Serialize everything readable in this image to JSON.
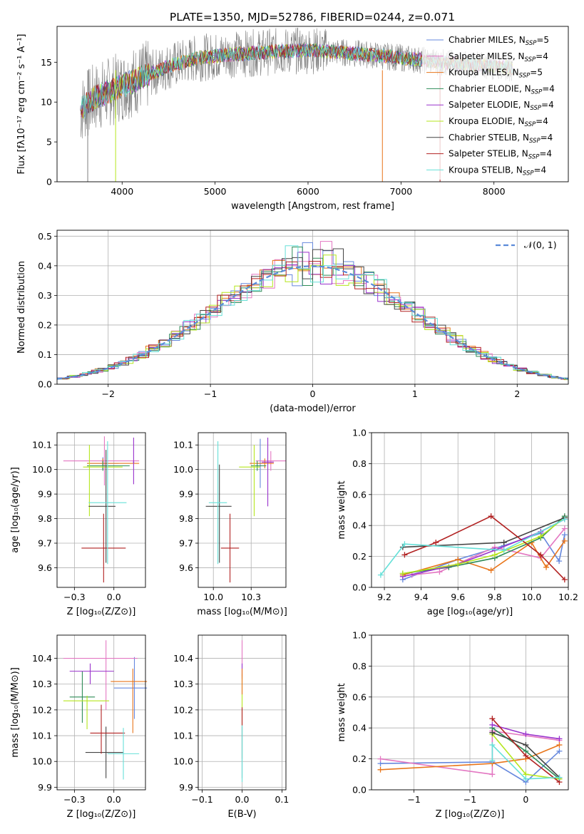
{
  "figure_title": "PLATE=1350, MJD=52786, FIBERID=0244, z=0.071",
  "models": [
    {
      "key": "chab_miles",
      "imf": "Chabrier",
      "lib": "MILES",
      "nssp": "5",
      "color": "#6688dd"
    },
    {
      "key": "salp_miles",
      "imf": "Salpeter",
      "lib": "MILES",
      "nssp": "4",
      "color": "#e377c2"
    },
    {
      "key": "krou_miles",
      "imf": "Kroupa",
      "lib": "MILES",
      "nssp": "5",
      "color": "#e8751a"
    },
    {
      "key": "chab_elodie",
      "imf": "Chabrier",
      "lib": "ELODIE",
      "nssp": "4",
      "color": "#2e8b57"
    },
    {
      "key": "salp_elodie",
      "imf": "Salpeter",
      "lib": "ELODIE",
      "nssp": "4",
      "color": "#9932cc"
    },
    {
      "key": "krou_elodie",
      "imf": "Kroupa",
      "lib": "ELODIE",
      "nssp": "4",
      "color": "#b5e61d"
    },
    {
      "key": "chab_stelib",
      "imf": "Chabrier",
      "lib": "STELIB",
      "nssp": "4",
      "color": "#444444"
    },
    {
      "key": "salp_stelib",
      "imf": "Salpeter",
      "lib": "STELIB",
      "nssp": "4",
      "color": "#b22222"
    },
    {
      "key": "krou_stelib",
      "imf": "Kroupa",
      "lib": "STELIB",
      "nssp": "4",
      "color": "#66e0d8"
    }
  ],
  "chart_data": [
    {
      "id": "spectrum",
      "type": "line",
      "xlabel": "wavelength [Angstrom, rest frame]",
      "ylabel": "Flux [fλ10⁻¹⁷ erg cm⁻² s⁻¹ A⁻¹]",
      "xlim": [
        3300,
        8800
      ],
      "ylim": [
        0,
        19.5
      ],
      "xticks": [
        4000,
        5000,
        6000,
        7000,
        8000
      ],
      "yticks": [
        0,
        5,
        10,
        15
      ],
      "legend_position": "right",
      "continuum": [
        [
          3550,
          9
        ],
        [
          3700,
          10.5
        ],
        [
          3900,
          11.5
        ],
        [
          4100,
          12.5
        ],
        [
          4300,
          13.5
        ],
        [
          4500,
          14.5
        ],
        [
          4800,
          15.5
        ],
        [
          5200,
          16
        ],
        [
          5600,
          16.3
        ],
        [
          6000,
          16.5
        ],
        [
          6400,
          16.2
        ],
        [
          6800,
          15.8
        ],
        [
          7200,
          15.3
        ],
        [
          7600,
          14.8
        ],
        [
          8000,
          14.5
        ],
        [
          8200,
          14.3
        ]
      ],
      "notes": "noisy observed spectrum (grey) with model fits overlaid"
    },
    {
      "id": "residuals",
      "type": "line",
      "xlabel": "(data-model)/error",
      "ylabel": "Normed distribution",
      "xlim": [
        -2.5,
        2.5
      ],
      "ylim": [
        0,
        0.52
      ],
      "xticks": [
        -2,
        -1,
        0,
        1,
        2
      ],
      "yticks": [
        0,
        0.1,
        0.2,
        0.3,
        0.4,
        0.5
      ],
      "legend": "𝒩(0, 1)",
      "legend_position": "top-right",
      "series_note": "step histograms of each model's residuals with dashed Gaussian N(0,1)"
    },
    {
      "id": "age_vs_Z",
      "type": "scatter",
      "xlabel": "Z [log₁₀(Z/Z⊙)]",
      "ylabel": "age  [log₁₀(age/yr)]",
      "xlim": [
        -0.36,
        0.2
      ],
      "ylim": [
        9.52,
        10.15
      ],
      "xticks": [
        -0.25,
        0.0
      ],
      "yticks": [
        9.6,
        9.7,
        9.8,
        9.9,
        10.0,
        10.1
      ],
      "points": [
        {
          "model": "chab_miles",
          "x": -0.07,
          "xerr": [
            0.1,
            0.1
          ],
          "y": 10.025,
          "yerr": [
            0.025,
            0.025
          ]
        },
        {
          "model": "salp_miles",
          "x": -0.06,
          "xerr": [
            0.26,
            0.22
          ],
          "y": 10.035,
          "yerr": [
            0.1,
            0.1
          ]
        },
        {
          "model": "krou_miles",
          "x": -0.07,
          "xerr": [
            0.1,
            0.23
          ],
          "y": 10.025,
          "yerr": [
            0.02,
            0.02
          ]
        },
        {
          "model": "chab_elodie",
          "x": -0.07,
          "xerr": [
            0.1,
            0.17
          ],
          "y": 10.015,
          "yerr": [
            0.02,
            0.02
          ]
        },
        {
          "model": "salp_elodie",
          "x": 0.125,
          "xerr": [
            0.004,
            0.004
          ],
          "y": 10.03,
          "yerr": [
            0.09,
            0.1
          ]
        },
        {
          "model": "krou_elodie",
          "x": -0.155,
          "xerr": [
            0.04,
            0.21
          ],
          "y": 10.01,
          "yerr": [
            0.2,
            0.09
          ]
        },
        {
          "model": "chab_stelib",
          "x": -0.05,
          "xerr": [
            0.11,
            0.06
          ],
          "y": 9.85,
          "yerr": [
            0.23,
            0.23
          ]
        },
        {
          "model": "salp_stelib",
          "x": -0.065,
          "xerr": [
            0.14,
            0.14
          ],
          "y": 9.68,
          "yerr": [
            0.14,
            0.14
          ]
        },
        {
          "model": "krou_stelib",
          "x": -0.04,
          "xerr": [
            0.12,
            0.12
          ],
          "y": 9.865,
          "yerr": [
            0.25,
            0.25
          ]
        }
      ]
    },
    {
      "id": "age_vs_mass",
      "type": "scatter",
      "xlabel": "mass [log₁₀(M/M⊙)]",
      "ylabel": "",
      "xlim": [
        9.9,
        10.48
      ],
      "ylim": [
        9.52,
        10.15
      ],
      "xticks": [
        10.0,
        10.25
      ],
      "yticks": [
        9.6,
        9.7,
        9.8,
        9.9,
        10.0,
        10.1
      ],
      "points": [
        {
          "model": "chab_miles",
          "x": 10.31,
          "xerr": [
            0.02,
            0.02
          ],
          "y": 10.025,
          "yerr": [
            0.1,
            0.1
          ]
        },
        {
          "model": "salp_miles",
          "x": 10.38,
          "xerr": [
            0.1,
            0.1
          ],
          "y": 10.035,
          "yerr": [
            0.04,
            0.04
          ]
        },
        {
          "model": "krou_miles",
          "x": 10.34,
          "xerr": [
            0.1,
            0.06
          ],
          "y": 10.025,
          "yerr": [
            0.02,
            0.02
          ]
        },
        {
          "model": "chab_elodie",
          "x": 10.29,
          "xerr": [
            0.04,
            0.06
          ],
          "y": 10.015,
          "yerr": [
            0.02,
            0.02
          ]
        },
        {
          "model": "salp_elodie",
          "x": 10.36,
          "xerr": [
            0.04,
            0.04
          ],
          "y": 10.03,
          "yerr": [
            0.18,
            0.1
          ]
        },
        {
          "model": "krou_elodie",
          "x": 10.27,
          "xerr": [
            0.1,
            0.04
          ],
          "y": 10.01,
          "yerr": [
            0.2,
            0.09
          ]
        },
        {
          "model": "chab_stelib",
          "x": 10.04,
          "xerr": [
            0.09,
            0.08
          ],
          "y": 9.85,
          "yerr": [
            0.23,
            0.17
          ]
        },
        {
          "model": "salp_stelib",
          "x": 10.11,
          "xerr": [
            0.06,
            0.06
          ],
          "y": 9.68,
          "yerr": [
            0.14,
            0.14
          ]
        },
        {
          "model": "krou_stelib",
          "x": 10.03,
          "xerr": [
            0.06,
            0.06
          ],
          "y": 9.865,
          "yerr": [
            0.25,
            0.25
          ]
        }
      ]
    },
    {
      "id": "weight_vs_age",
      "type": "line",
      "xlabel": "age  [log₁₀(age/yr)]",
      "ylabel": "mass weight",
      "xlim": [
        9.13,
        10.2
      ],
      "ylim": [
        0,
        1
      ],
      "xticks": [
        9.2,
        9.4,
        9.6,
        9.8,
        10.0,
        10.2
      ],
      "yticks": [
        0,
        0.2,
        0.4,
        0.6,
        0.8,
        1.0
      ],
      "series": [
        {
          "model": "chab_miles",
          "x": [
            9.3,
            9.6,
            9.85,
            10.05,
            10.15,
            10.18
          ],
          "y": [
            0.05,
            0.18,
            0.27,
            0.35,
            0.17,
            0.34
          ]
        },
        {
          "model": "salp_miles",
          "x": [
            9.35,
            9.5,
            9.8,
            10.05,
            10.18
          ],
          "y": [
            0.08,
            0.1,
            0.26,
            0.19,
            0.38
          ]
        },
        {
          "model": "krou_miles",
          "x": [
            9.3,
            9.6,
            9.78,
            10.0,
            10.08,
            10.18
          ],
          "y": [
            0.08,
            0.18,
            0.11,
            0.29,
            0.13,
            0.3
          ]
        },
        {
          "model": "chab_elodie",
          "x": [
            9.3,
            9.55,
            9.8,
            10.05,
            10.18
          ],
          "y": [
            0.09,
            0.13,
            0.19,
            0.32,
            0.46
          ]
        },
        {
          "model": "salp_elodie",
          "x": [
            9.3,
            9.6,
            9.8,
            10.05,
            10.18
          ],
          "y": [
            0.07,
            0.15,
            0.24,
            0.36,
            0.44
          ]
        },
        {
          "model": "krou_elodie",
          "x": [
            9.3,
            9.6,
            9.8,
            10.05,
            10.18
          ],
          "y": [
            0.09,
            0.15,
            0.21,
            0.33,
            0.45
          ]
        },
        {
          "model": "chab_stelib",
          "x": [
            9.3,
            9.85,
            10.18
          ],
          "y": [
            0.26,
            0.29,
            0.45
          ]
        },
        {
          "model": "salp_stelib",
          "x": [
            9.31,
            9.48,
            9.78,
            10.05,
            10.18
          ],
          "y": [
            0.21,
            0.29,
            0.46,
            0.21,
            0.05
          ]
        },
        {
          "model": "krou_stelib",
          "x": [
            9.18,
            9.31,
            9.85,
            10.18
          ],
          "y": [
            0.08,
            0.28,
            0.24,
            0.44
          ]
        }
      ]
    },
    {
      "id": "mass_vs_Z",
      "type": "scatter",
      "xlabel": "Z [log₁₀(Z/Z⊙)]",
      "ylabel": "mass [log₁₀(M/M⊙)]",
      "xlim": [
        -0.36,
        0.2
      ],
      "ylim": [
        9.89,
        10.49
      ],
      "xticks": [
        -0.25,
        0.0
      ],
      "yticks": [
        9.9,
        10.0,
        10.1,
        10.2,
        10.3,
        10.4
      ],
      "points": [
        {
          "model": "chab_miles",
          "x": 0.13,
          "xerr": [
            0.13,
            0.08
          ],
          "y": 10.285,
          "yerr": [
            0.12,
            0.12
          ]
        },
        {
          "model": "salp_miles",
          "x": -0.05,
          "xerr": [
            0.27,
            0.2
          ],
          "y": 10.4,
          "yerr": [
            0.2,
            0.07
          ]
        },
        {
          "model": "krou_miles",
          "x": 0.12,
          "xerr": [
            0.14,
            0.09
          ],
          "y": 10.31,
          "yerr": [
            0.2,
            0.05
          ]
        },
        {
          "model": "chab_elodie",
          "x": -0.2,
          "xerr": [
            0.08,
            0.08
          ],
          "y": 10.25,
          "yerr": [
            0.1,
            0.1
          ]
        },
        {
          "model": "salp_elodie",
          "x": -0.15,
          "xerr": [
            0.13,
            0.15
          ],
          "y": 10.35,
          "yerr": [
            0.05,
            0.03
          ]
        },
        {
          "model": "krou_elodie",
          "x": -0.17,
          "xerr": [
            0.15,
            0.14
          ],
          "y": 10.235,
          "yerr": [
            0.11,
            0.02
          ]
        },
        {
          "model": "chab_stelib",
          "x": -0.05,
          "xerr": [
            0.13,
            0.11
          ],
          "y": 10.035,
          "yerr": [
            0.1,
            0.1
          ]
        },
        {
          "model": "salp_stelib",
          "x": -0.08,
          "xerr": [
            0.07,
            0.15
          ],
          "y": 10.11,
          "yerr": [
            0.08,
            0.11
          ]
        },
        {
          "model": "krou_stelib",
          "x": 0.06,
          "xerr": [
            0.1,
            0.1
          ],
          "y": 10.03,
          "yerr": [
            0.1,
            0.1
          ]
        }
      ]
    },
    {
      "id": "mass_vs_ebv",
      "type": "scatter",
      "xlabel": "E(B-V)",
      "ylabel": "",
      "xlim": [
        -0.055,
        0.055
      ],
      "ylim": [
        9.89,
        10.49
      ],
      "xticks": [
        -0.05,
        0.0,
        0.05
      ],
      "yticks": [
        9.9,
        10.0,
        10.1,
        10.2,
        10.3,
        10.4
      ],
      "points": [
        {
          "model": "salp_miles",
          "x": 0,
          "y": 10.4,
          "yerr": [
            0.07,
            0.07
          ]
        },
        {
          "model": "salp_elodie",
          "x": 0,
          "y": 10.35,
          "yerr": [
            0.03,
            0.03
          ]
        },
        {
          "model": "krou_elodie",
          "x": 0,
          "y": 10.24,
          "yerr": [
            0.1,
            0.1
          ]
        },
        {
          "model": "krou_miles",
          "x": 0,
          "y": 10.31,
          "yerr": [
            0.05,
            0.05
          ]
        },
        {
          "model": "salp_stelib",
          "x": 0,
          "y": 10.11,
          "yerr": [
            0.1,
            0.1
          ]
        },
        {
          "model": "chab_stelib",
          "x": 0,
          "y": 10.035,
          "yerr": [
            0.1,
            0.1
          ]
        },
        {
          "model": "krou_stelib",
          "x": 0,
          "y": 10.03,
          "yerr": [
            0.11,
            0.11
          ]
        }
      ]
    },
    {
      "id": "weight_vs_Z",
      "type": "line",
      "xlabel": "Z [log₁₀(Z/Z⊙)]",
      "ylabel": "mass weight",
      "xlim": [
        -1.38,
        0.38
      ],
      "ylim": [
        0,
        1
      ],
      "xticks": [
        -1.0,
        -0.5,
        0.0
      ],
      "yticks": [
        0,
        0.2,
        0.4,
        0.6,
        0.8,
        1.0
      ],
      "series": [
        {
          "model": "chab_miles",
          "x": [
            -1.3,
            -0.3,
            0.0,
            0.3
          ],
          "y": [
            0.17,
            0.18,
            0.05,
            0.25
          ]
        },
        {
          "model": "salp_miles",
          "x": [
            -1.3,
            -0.3,
            -0.3,
            0.3
          ],
          "y": [
            0.2,
            0.1,
            0.38,
            0.32
          ]
        },
        {
          "model": "krou_miles",
          "x": [
            -1.3,
            -0.3,
            0.0,
            0.3
          ],
          "y": [
            0.13,
            0.17,
            0.2,
            0.29
          ]
        },
        {
          "model": "chab_elodie",
          "x": [
            -0.3,
            0.0,
            0.3
          ],
          "y": [
            0.4,
            0.25,
            0.07
          ]
        },
        {
          "model": "salp_elodie",
          "x": [
            -0.3,
            0.0,
            0.3
          ],
          "y": [
            0.42,
            0.36,
            0.33
          ]
        },
        {
          "model": "krou_elodie",
          "x": [
            -0.3,
            0.0,
            0.3
          ],
          "y": [
            0.36,
            0.1,
            0.07
          ]
        },
        {
          "model": "chab_stelib",
          "x": [
            -0.3,
            0.0,
            0.3
          ],
          "y": [
            0.37,
            0.29,
            0.08
          ]
        },
        {
          "model": "salp_stelib",
          "x": [
            -0.3,
            0.0,
            0.3
          ],
          "y": [
            0.46,
            0.22,
            0.05
          ]
        },
        {
          "model": "krou_stelib",
          "x": [
            -0.3,
            -0.3,
            0.0,
            0.3
          ],
          "y": [
            0.19,
            0.29,
            0.07,
            0.08
          ]
        }
      ]
    }
  ]
}
